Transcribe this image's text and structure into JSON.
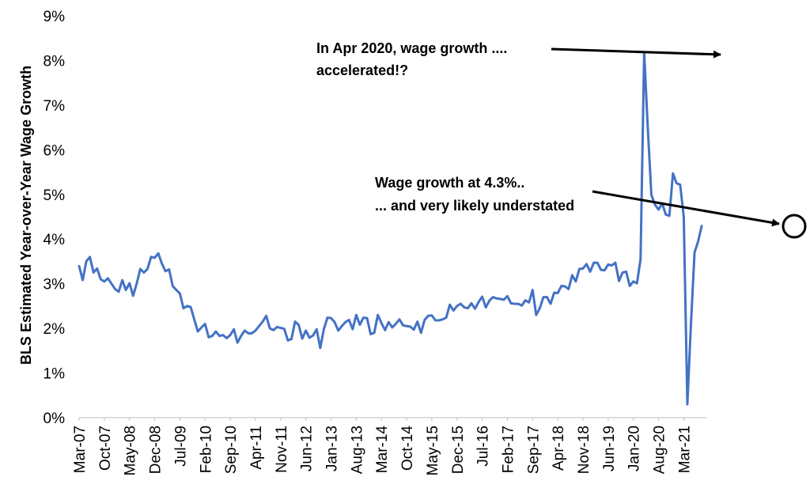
{
  "chart_data": {
    "type": "line",
    "ylabel": "BLS Estimated Year-over-Year Wage Growth",
    "xlabel": "",
    "ylim": [
      0,
      9
    ],
    "y_ticks": [
      "0%",
      "1%",
      "2%",
      "3%",
      "4%",
      "5%",
      "6%",
      "7%",
      "8%",
      "9%"
    ],
    "x_ticks": [
      "Mar-07",
      "Oct-07",
      "May-08",
      "Dec-08",
      "Jul-09",
      "Feb-10",
      "Sep-10",
      "Apr-11",
      "Nov-11",
      "Jun-12",
      "Jan-13",
      "Aug-13",
      "Mar-14",
      "Oct-14",
      "May-15",
      "Dec-15",
      "Jul-16",
      "Feb-17",
      "Sep-17",
      "Apr-18",
      "Nov-18",
      "Jun-19",
      "Jan-20",
      "Aug-20",
      "Mar-21"
    ],
    "x_start": "Mar-07",
    "x_step": "1 month",
    "grid": false,
    "line_color": "#4472C4",
    "series": [
      {
        "values": [
          3.4,
          3.08,
          3.5,
          3.6,
          3.25,
          3.34,
          3.1,
          3.05,
          3.12,
          3.0,
          2.88,
          2.82,
          3.08,
          2.86,
          3.01,
          2.73,
          3.0,
          3.33,
          3.25,
          3.33,
          3.6,
          3.58,
          3.68,
          3.45,
          3.28,
          3.32,
          2.95,
          2.86,
          2.78,
          2.45,
          2.5,
          2.48,
          2.2,
          1.93,
          2.02,
          2.1,
          1.8,
          1.83,
          1.93,
          1.83,
          1.85,
          1.78,
          1.85,
          1.98,
          1.68,
          1.83,
          1.95,
          1.89,
          1.89,
          1.95,
          2.05,
          2.15,
          2.28,
          2.0,
          1.96,
          2.03,
          2.01,
          1.99,
          1.73,
          1.76,
          2.15,
          2.08,
          1.77,
          1.95,
          1.79,
          1.84,
          1.98,
          1.56,
          1.98,
          2.24,
          2.23,
          2.14,
          1.95,
          2.05,
          2.14,
          2.19,
          1.98,
          2.3,
          2.08,
          2.24,
          2.23,
          1.87,
          1.9,
          2.3,
          2.12,
          1.96,
          2.14,
          2.02,
          2.1,
          2.2,
          2.07,
          2.05,
          2.04,
          1.97,
          2.15,
          1.9,
          2.19,
          2.28,
          2.29,
          2.18,
          2.18,
          2.2,
          2.24,
          2.53,
          2.4,
          2.5,
          2.55,
          2.47,
          2.45,
          2.56,
          2.44,
          2.59,
          2.71,
          2.47,
          2.62,
          2.7,
          2.67,
          2.66,
          2.64,
          2.72,
          2.56,
          2.55,
          2.55,
          2.51,
          2.63,
          2.58,
          2.86,
          2.3,
          2.45,
          2.7,
          2.7,
          2.55,
          2.8,
          2.79,
          2.95,
          2.94,
          2.88,
          3.19,
          3.05,
          3.33,
          3.34,
          3.44,
          3.27,
          3.47,
          3.47,
          3.31,
          3.3,
          3.43,
          3.41,
          3.47,
          3.06,
          3.25,
          3.27,
          2.95,
          3.05,
          3.01,
          3.55,
          8.18,
          6.5,
          4.99,
          4.77,
          4.66,
          4.8,
          4.55,
          4.52,
          5.47,
          5.25,
          5.22,
          4.5,
          0.3,
          2.1,
          3.7,
          3.95,
          4.3
        ]
      }
    ],
    "annotations": [
      {
        "lines": [
          "In Apr 2020, wage growth ....",
          "accelerated!?"
        ]
      },
      {
        "lines": [
          "Wage growth at 4.3%..",
          "... and very likely understated"
        ]
      }
    ]
  }
}
